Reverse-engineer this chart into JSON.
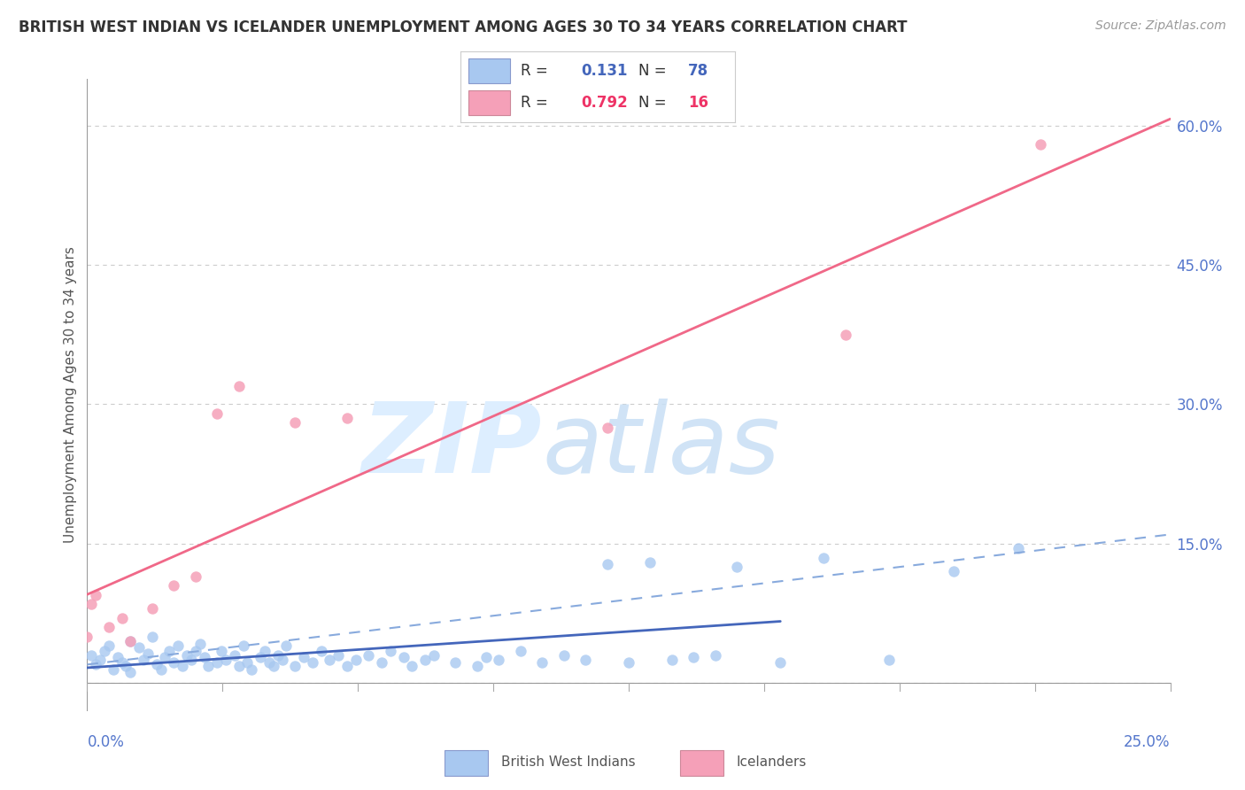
{
  "title": "BRITISH WEST INDIAN VS ICELANDER UNEMPLOYMENT AMONG AGES 30 TO 34 YEARS CORRELATION CHART",
  "source": "Source: ZipAtlas.com",
  "ylabel": "Unemployment Among Ages 30 to 34 years",
  "right_yticks": [
    0.0,
    0.15,
    0.3,
    0.45,
    0.6
  ],
  "right_yticklabels": [
    "",
    "15.0%",
    "30.0%",
    "45.0%",
    "60.0%"
  ],
  "xmin": 0.0,
  "xmax": 0.25,
  "ymin": -0.03,
  "ymax": 0.65,
  "color_bwi": "#a8c8f0",
  "color_icelander": "#f5a0b8",
  "color_bwi_line": "#4466bb",
  "color_icelander_line": "#f06888",
  "color_bwi_dash": "#88aadd",
  "watermark_zip": "ZIP",
  "watermark_atlas": "atlas",
  "watermark_color": "#ddeeff",
  "grid_color": "#cccccc",
  "bwi_x": [
    0.001,
    0.002,
    0.003,
    0.004,
    0.005,
    0.006,
    0.007,
    0.008,
    0.009,
    0.01,
    0.01,
    0.012,
    0.013,
    0.014,
    0.015,
    0.016,
    0.017,
    0.018,
    0.019,
    0.02,
    0.021,
    0.022,
    0.023,
    0.024,
    0.025,
    0.026,
    0.027,
    0.028,
    0.03,
    0.031,
    0.032,
    0.034,
    0.035,
    0.036,
    0.037,
    0.038,
    0.04,
    0.041,
    0.042,
    0.043,
    0.044,
    0.045,
    0.046,
    0.048,
    0.05,
    0.052,
    0.054,
    0.056,
    0.058,
    0.06,
    0.062,
    0.065,
    0.068,
    0.07,
    0.073,
    0.075,
    0.078,
    0.08,
    0.085,
    0.09,
    0.092,
    0.095,
    0.1,
    0.105,
    0.11,
    0.115,
    0.12,
    0.125,
    0.13,
    0.135,
    0.14,
    0.145,
    0.15,
    0.16,
    0.17,
    0.185,
    0.2,
    0.215
  ],
  "bwi_y": [
    0.03,
    0.02,
    0.025,
    0.035,
    0.04,
    0.015,
    0.028,
    0.022,
    0.018,
    0.045,
    0.012,
    0.038,
    0.025,
    0.032,
    0.05,
    0.02,
    0.015,
    0.028,
    0.035,
    0.022,
    0.04,
    0.018,
    0.03,
    0.025,
    0.035,
    0.042,
    0.028,
    0.018,
    0.022,
    0.035,
    0.025,
    0.03,
    0.018,
    0.04,
    0.022,
    0.015,
    0.028,
    0.035,
    0.022,
    0.018,
    0.03,
    0.025,
    0.04,
    0.018,
    0.028,
    0.022,
    0.035,
    0.025,
    0.03,
    0.018,
    0.025,
    0.03,
    0.022,
    0.035,
    0.028,
    0.018,
    0.025,
    0.03,
    0.022,
    0.018,
    0.028,
    0.025,
    0.035,
    0.022,
    0.03,
    0.025,
    0.128,
    0.022,
    0.13,
    0.025,
    0.028,
    0.03,
    0.125,
    0.022,
    0.135,
    0.025,
    0.12,
    0.145
  ],
  "icelander_x": [
    0.0,
    0.001,
    0.002,
    0.005,
    0.008,
    0.01,
    0.015,
    0.02,
    0.025,
    0.03,
    0.035,
    0.048,
    0.06,
    0.12,
    0.175,
    0.22
  ],
  "icelander_y": [
    0.05,
    0.085,
    0.095,
    0.06,
    0.07,
    0.045,
    0.08,
    0.105,
    0.115,
    0.29,
    0.32,
    0.28,
    0.285,
    0.275,
    0.375,
    0.58
  ]
}
